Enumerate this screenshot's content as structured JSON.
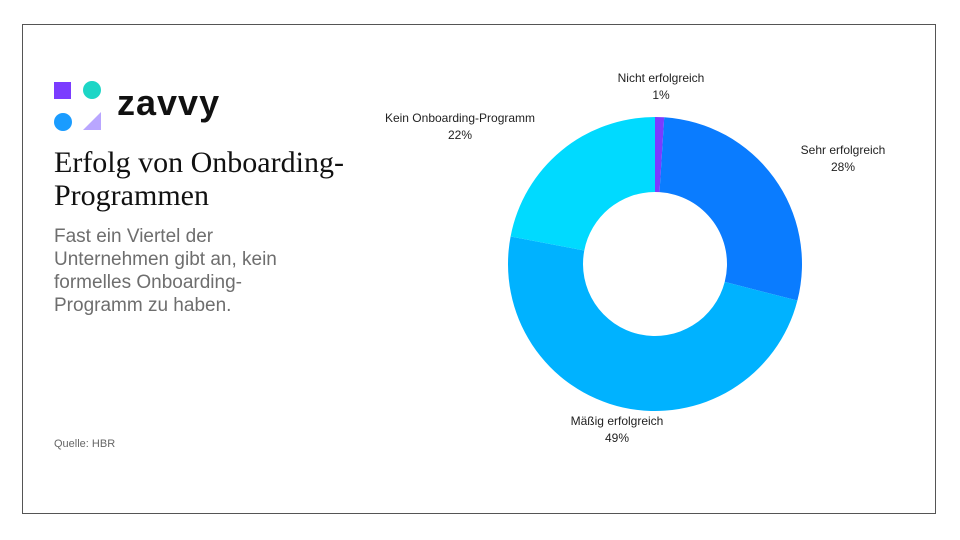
{
  "brand": "zavvy",
  "source": "Quelle: HBR",
  "chart_data": {
    "type": "donut",
    "title": "Erfolg von Onboarding-Programmen",
    "subtitle": "Fast ein Viertel der Unternehmen gibt an, kein formelles Onboarding-Programm zu haben.",
    "categories": [
      "Nicht erfolgreich",
      "Sehr erfolgreich",
      "Mäßig erfolgreich",
      "Kein Onboarding-Programm"
    ],
    "values": [
      1,
      28,
      49,
      22
    ],
    "value_labels": [
      "1%",
      "28%",
      "49%",
      "22%"
    ],
    "colors": [
      "#7b3cff",
      "#0a7cff",
      "#00b2ff",
      "#00daff"
    ]
  }
}
